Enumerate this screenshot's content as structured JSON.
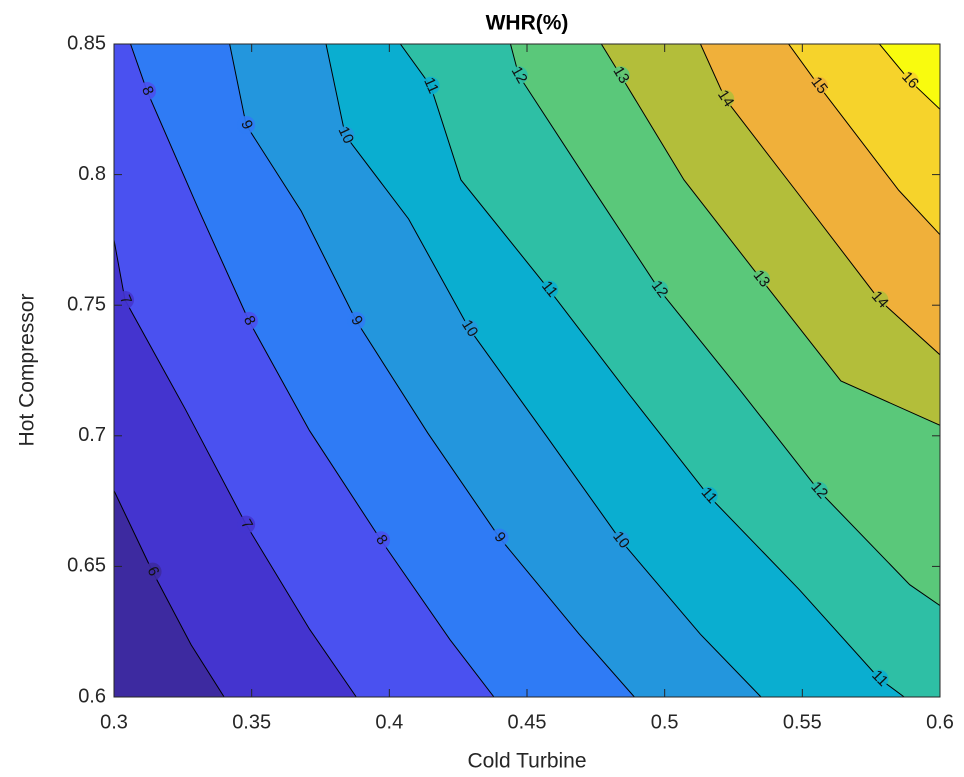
{
  "chart_data": {
    "type": "contour",
    "title": "WHR(%)",
    "xlabel": "Cold Turbine",
    "ylabel": "Hot Compressor",
    "xlim": [
      0.3,
      0.6
    ],
    "ylim": [
      0.6,
      0.85
    ],
    "xticks": [
      0.3,
      0.35,
      0.4,
      0.45,
      0.5,
      0.55,
      0.6
    ],
    "yticks": [
      0.6,
      0.65,
      0.7,
      0.75,
      0.8,
      0.85
    ],
    "base_color": "#3d2aa0",
    "contours": [
      {
        "level": 6,
        "color": "#4434cf",
        "x": [
          0.3,
          0.314,
          0.328,
          0.34
        ],
        "y": [
          0.679,
          0.648,
          0.62,
          0.6
        ]
      },
      {
        "level": 7,
        "color": "#4a51f0",
        "x": [
          0.3,
          0.304,
          0.326,
          0.348,
          0.371,
          0.388
        ],
        "y": [
          0.775,
          0.752,
          0.71,
          0.666,
          0.626,
          0.6
        ]
      },
      {
        "level": 8,
        "color": "#2f7bf5",
        "x": [
          0.306,
          0.312,
          0.331,
          0.349,
          0.371,
          0.397,
          0.422,
          0.438
        ],
        "y": [
          0.85,
          0.832,
          0.786,
          0.744,
          0.702,
          0.66,
          0.622,
          0.6
        ]
      },
      {
        "level": 9,
        "color": "#2396dd",
        "x": [
          0.342,
          0.348,
          0.368,
          0.388,
          0.414,
          0.44,
          0.469,
          0.489
        ],
        "y": [
          0.85,
          0.819,
          0.786,
          0.744,
          0.701,
          0.661,
          0.624,
          0.6
        ]
      },
      {
        "level": 10,
        "color": "#0aaed0",
        "x": [
          0.377,
          0.384,
          0.407,
          0.429,
          0.457,
          0.484,
          0.513,
          0.535
        ],
        "y": [
          0.85,
          0.815,
          0.783,
          0.741,
          0.7,
          0.66,
          0.624,
          0.6
        ]
      },
      {
        "level": 11,
        "color": "#2ebfa5",
        "x": [
          0.404,
          0.415,
          0.426,
          0.458,
          0.487,
          0.516,
          0.549,
          0.578,
          0.587
        ],
        "y": [
          0.85,
          0.834,
          0.798,
          0.756,
          0.716,
          0.677,
          0.641,
          0.607,
          0.6
        ]
      },
      {
        "level": 12,
        "color": "#5ac87a",
        "x": [
          0.444,
          0.447,
          0.473,
          0.498,
          0.527,
          0.556,
          0.589,
          0.6
        ],
        "y": [
          0.85,
          0.838,
          0.796,
          0.756,
          0.718,
          0.679,
          0.643,
          0.635
        ]
      },
      {
        "level": 13,
        "color": "#b3be3a",
        "x": [
          0.477,
          0.484,
          0.507,
          0.535,
          0.564,
          0.6
        ],
        "y": [
          0.85,
          0.838,
          0.798,
          0.76,
          0.721,
          0.704
        ]
      },
      {
        "level": 14,
        "color": "#f0b03a",
        "x": [
          0.513,
          0.522,
          0.549,
          0.578,
          0.6
        ],
        "y": [
          0.85,
          0.829,
          0.792,
          0.752,
          0.731
        ]
      },
      {
        "level": 15,
        "color": "#f6d32b",
        "x": [
          0.545,
          0.556,
          0.585,
          0.6
        ],
        "y": [
          0.85,
          0.834,
          0.794,
          0.777
        ]
      },
      {
        "level": 16,
        "color": "#f9fb0e",
        "x": [
          0.578,
          0.589,
          0.6
        ],
        "y": [
          0.85,
          0.836,
          0.825
        ]
      }
    ]
  }
}
